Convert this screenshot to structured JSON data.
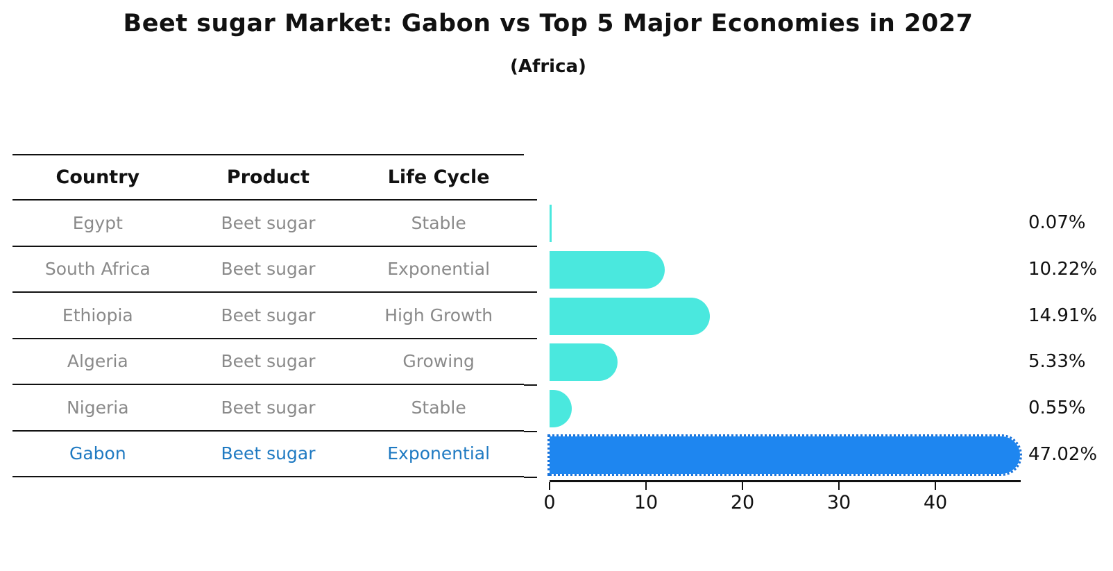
{
  "title": "Beet sugar Market: Gabon vs Top 5 Major Economies in 2027",
  "subtitle": "(Africa)",
  "table": {
    "headers": [
      "Country",
      "Product",
      "Life Cycle"
    ],
    "rows": [
      {
        "country": "Egypt",
        "product": "Beet sugar",
        "life_cycle": "Stable",
        "highlight": false
      },
      {
        "country": "South Africa",
        "product": "Beet sugar",
        "life_cycle": "Exponential",
        "highlight": false
      },
      {
        "country": "Ethiopia",
        "product": "Beet sugar",
        "life_cycle": "High Growth",
        "highlight": false
      },
      {
        "country": "Algeria",
        "product": "Beet sugar",
        "life_cycle": "Growing",
        "highlight": false
      },
      {
        "country": "Nigeria",
        "product": "Beet sugar",
        "life_cycle": "Stable",
        "highlight": true
      }
    ],
    "highlight_row": {
      "country": "Gabon",
      "product": "Beet sugar",
      "life_cycle": "Exponential"
    }
  },
  "chart_data": {
    "type": "bar",
    "orientation": "horizontal",
    "title": "Beet sugar Market: Gabon vs Top 5 Major Economies in 2027 (Africa)",
    "categories": [
      "Egypt",
      "South Africa",
      "Ethiopia",
      "Algeria",
      "Nigeria",
      "Gabon"
    ],
    "values": [
      0.07,
      10.22,
      14.91,
      5.33,
      0.55,
      47.02
    ],
    "value_labels": [
      "0.07%",
      "10.22%",
      "14.91%",
      "5.33%",
      "0.55%",
      "47.02%"
    ],
    "x_ticks": [
      0,
      10,
      20,
      30,
      40
    ],
    "xlim": [
      0,
      49.4
    ],
    "grid": false,
    "legend": "none",
    "highlight_category": "Gabon"
  },
  "colors": {
    "bar_default": "#4AE8DE",
    "bar_highlight": "#1E86F0",
    "bar_highlight_dots": "#1B74DB",
    "highlight_text": "#1f7ac2",
    "row_text": "#8a8a8a",
    "axis": "#111111"
  }
}
